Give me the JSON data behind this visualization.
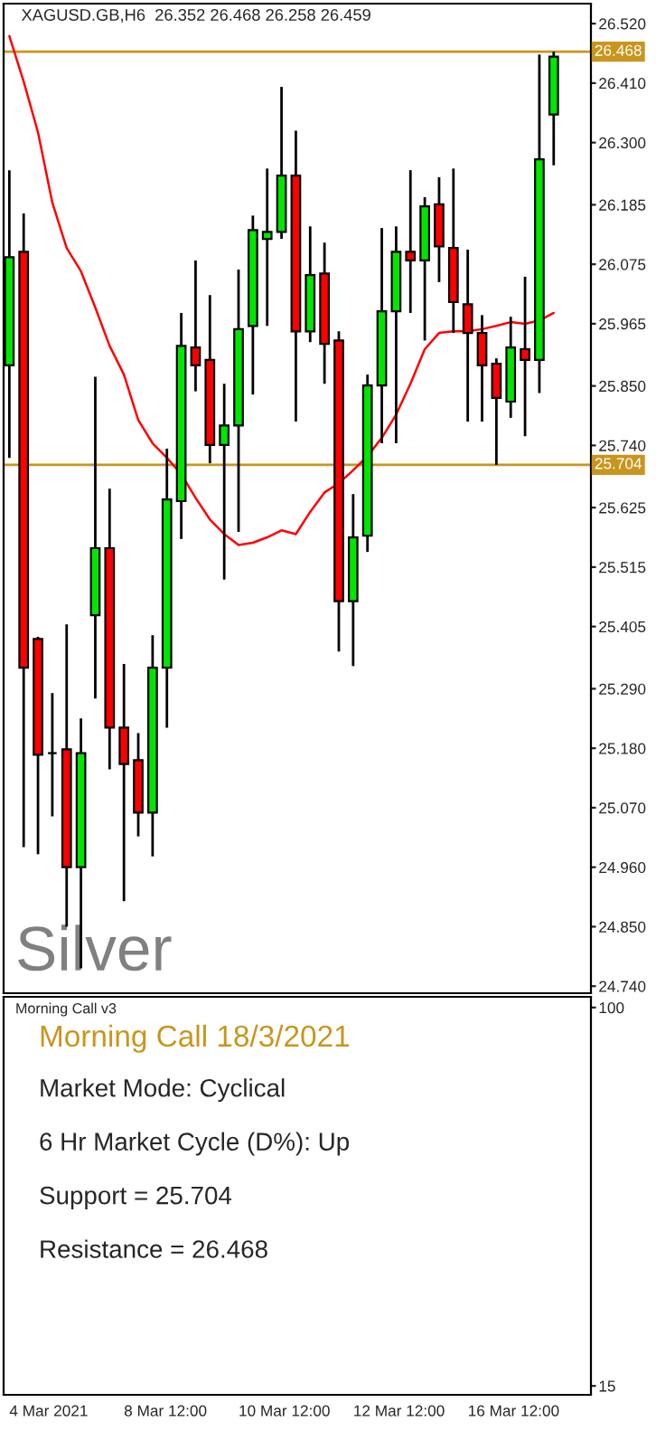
{
  "chart_data": [
    {
      "type": "candlestick",
      "title": "XAGUSD.GB,H6  26.352 26.468 26.258 26.459",
      "categories": [
        null,
        null,
        null,
        null,
        null,
        null,
        null,
        null,
        null,
        null,
        null,
        null,
        null,
        null,
        null,
        null,
        null,
        null,
        null,
        null,
        null,
        null,
        null,
        null,
        null,
        null,
        null,
        null,
        null,
        null,
        null,
        null,
        null,
        null,
        null,
        null,
        null,
        null,
        null
      ],
      "ohlc": [
        [
          25.888,
          26.249,
          25.717,
          26.088
        ],
        [
          26.098,
          26.169,
          24.997,
          25.329
        ],
        [
          25.382,
          25.386,
          24.984,
          25.168
        ],
        [
          25.171,
          25.282,
          25.054,
          25.171
        ],
        [
          25.178,
          25.409,
          24.85,
          24.96
        ],
        [
          24.96,
          25.235,
          24.773,
          25.171
        ],
        [
          25.426,
          25.867,
          25.272,
          25.55
        ],
        [
          25.55,
          25.66,
          25.141,
          25.218
        ],
        [
          25.218,
          25.336,
          24.897,
          25.151
        ],
        [
          25.158,
          25.208,
          25.017,
          25.061
        ],
        [
          25.061,
          25.389,
          24.98,
          25.329
        ],
        [
          25.329,
          25.734,
          25.218,
          25.64
        ],
        [
          25.637,
          25.985,
          25.567,
          25.924
        ],
        [
          25.921,
          26.082,
          25.84,
          25.888
        ],
        [
          25.898,
          26.018,
          25.707,
          25.741
        ],
        [
          25.741,
          25.854,
          25.492,
          25.777
        ],
        [
          25.777,
          26.065,
          25.58,
          25.955
        ],
        [
          25.961,
          26.165,
          25.834,
          26.138
        ],
        [
          26.122,
          26.252,
          25.961,
          26.135
        ],
        [
          26.135,
          26.403,
          26.122,
          26.239
        ],
        [
          26.239,
          26.322,
          25.784,
          25.951
        ],
        [
          25.951,
          26.145,
          25.931,
          26.055
        ],
        [
          26.058,
          26.115,
          25.854,
          25.928
        ],
        [
          25.934,
          25.951,
          25.359,
          25.452
        ],
        [
          25.452,
          25.65,
          25.332,
          25.57
        ],
        [
          25.573,
          25.871,
          25.543,
          25.851
        ],
        [
          25.851,
          26.142,
          25.744,
          25.988
        ],
        [
          25.988,
          26.145,
          25.744,
          26.098
        ],
        [
          26.098,
          26.249,
          25.985,
          26.082
        ],
        [
          26.082,
          26.199,
          25.934,
          26.182
        ],
        [
          26.186,
          26.236,
          26.042,
          26.108
        ],
        [
          26.105,
          26.252,
          25.948,
          26.005
        ],
        [
          26.001,
          26.102,
          25.784,
          25.948
        ],
        [
          25.948,
          25.981,
          25.784,
          25.888
        ],
        [
          25.891,
          25.901,
          25.704,
          25.828
        ],
        [
          25.821,
          25.978,
          25.791,
          25.921
        ],
        [
          25.918,
          26.052,
          25.757,
          25.898
        ],
        [
          25.898,
          26.463,
          25.837,
          26.269
        ],
        [
          26.352,
          26.468,
          26.258,
          26.459
        ]
      ],
      "colors": [
        "#00e600",
        "#ff0000",
        "#ff0000",
        "#000000",
        "#ff0000",
        "#00e600",
        "#00e600",
        "#ff0000",
        "#ff0000",
        "#ff0000",
        "#00e600",
        "#00e600",
        "#00e600",
        "#ff0000",
        "#ff0000",
        "#00e600",
        "#00e600",
        "#00e600",
        "#00e600",
        "#00e600",
        "#ff0000",
        "#00e600",
        "#ff0000",
        "#ff0000",
        "#00e600",
        "#00e600",
        "#00e600",
        "#00e600",
        "#ff0000",
        "#00e600",
        "#ff0000",
        "#ff0000",
        "#ff0000",
        "#ff0000",
        "#ff0000",
        "#00e600",
        "#ff0000",
        "#00e600",
        "#00e600"
      ],
      "series": [
        {
          "type": "line",
          "color": "#ff0000",
          "values": [
            26.497,
            26.413,
            26.319,
            26.189,
            26.105,
            26.062,
            25.995,
            25.924,
            25.871,
            25.787,
            25.744,
            25.717,
            25.687,
            25.643,
            25.603,
            25.576,
            25.556,
            25.56,
            25.57,
            25.583,
            25.576,
            25.617,
            25.653,
            25.67,
            25.694,
            25.72,
            25.754,
            25.797,
            25.854,
            25.918,
            25.948,
            25.951,
            25.951,
            25.955,
            25.961,
            25.968,
            25.965,
            25.971,
            25.985
          ]
        }
      ],
      "ylim": [
        24.727,
        26.557
      ],
      "yticks": [
        {
          "value": 26.52,
          "label": "26.520"
        },
        {
          "value": 26.41,
          "label": "26.410"
        },
        {
          "value": 26.3,
          "label": "26.300"
        },
        {
          "value": 26.185,
          "label": "26.185"
        },
        {
          "value": 26.075,
          "label": "26.075"
        },
        {
          "value": 25.965,
          "label": "25.965"
        },
        {
          "value": 25.85,
          "label": "25.850"
        },
        {
          "value": 25.74,
          "label": "25.740"
        },
        {
          "value": 25.625,
          "label": "25.625"
        },
        {
          "value": 25.515,
          "label": "25.515"
        },
        {
          "value": 25.405,
          "label": "25.405"
        },
        {
          "value": 25.29,
          "label": "25.290"
        },
        {
          "value": 25.18,
          "label": "25.180"
        },
        {
          "value": 25.07,
          "label": "25.070"
        },
        {
          "value": 24.96,
          "label": "24.960"
        },
        {
          "value": 24.85,
          "label": "24.850"
        },
        {
          "value": 24.74,
          "label": "24.740"
        }
      ],
      "ref_lines": [
        {
          "axis": "y",
          "value": 26.468,
          "label": "26.468",
          "color": "#c8961e"
        },
        {
          "axis": "y",
          "value": 25.704,
          "label": "25.704",
          "color": "#c8961e"
        }
      ],
      "annotations": [
        "Silver"
      ],
      "tick_labels": "y",
      "grid": false,
      "legend": false
    },
    {
      "type": "line",
      "title": "Morning Call v3",
      "subtitle": "Morning Call 18/3/2021",
      "categories": [
        "4 Mar 2021",
        null,
        null,
        null,
        null,
        null,
        null,
        null,
        "8 Mar 12:00",
        null,
        null,
        null,
        null,
        null,
        null,
        null,
        "10 Mar 12:00",
        null,
        null,
        null,
        null,
        null,
        null,
        null,
        "12 Mar 12:00",
        null,
        null,
        null,
        null,
        null,
        null,
        null,
        "16 Mar 12:00",
        null,
        null,
        null,
        null,
        null,
        null
      ],
      "ylim": [
        13,
        102.4
      ],
      "yticks": [
        100,
        15
      ],
      "annotations": [
        "Market Mode: Cyclical",
        "6 Hr Market Cycle (D%): Up",
        "Support = 25.704",
        "Resistance = 26.468"
      ]
    }
  ]
}
